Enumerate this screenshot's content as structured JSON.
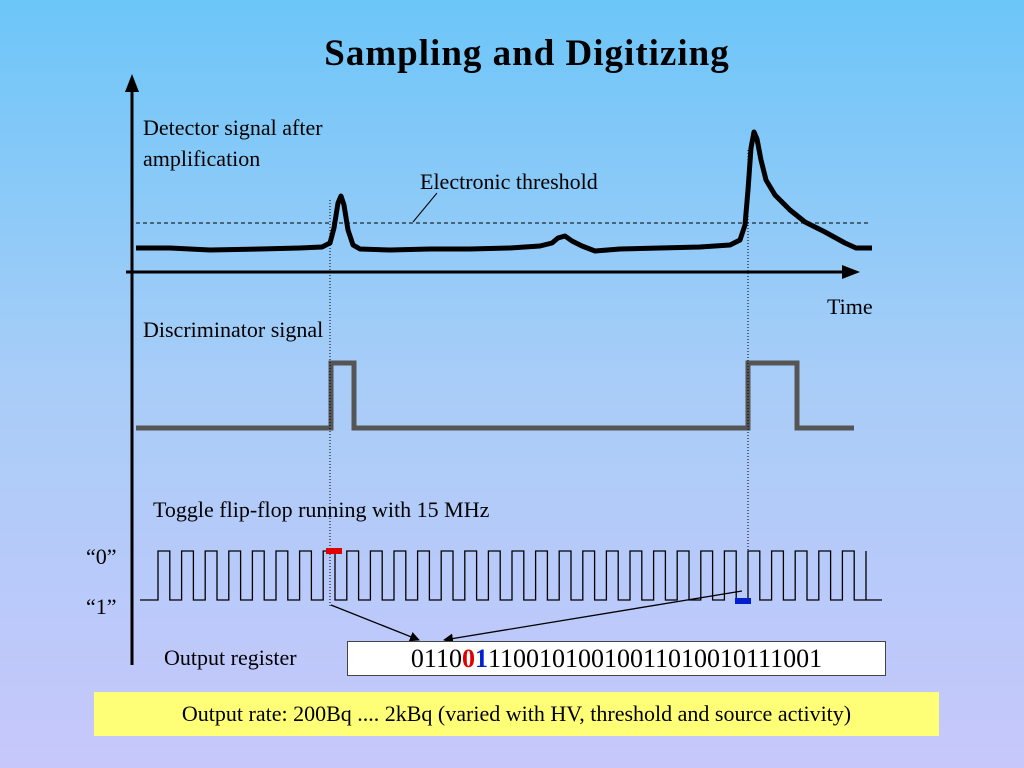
{
  "title": "Sampling and Digitizing",
  "labels": {
    "detector_line1": "Detector signal after",
    "detector_line2": "amplification",
    "threshold": "Electronic threshold",
    "time": "Time",
    "discriminator": "Discriminator signal",
    "flipflop": "Toggle flip-flop running with 15 MHz",
    "state_zero": "“0”",
    "state_one": "“1”",
    "output_register": "Output register"
  },
  "register": {
    "prefix": "0110",
    "bit_red": "0",
    "bit_blue": "1",
    "suffix": "11001010010011010010111001"
  },
  "note": "Output rate: 200Bq .... 2kBq (varied with HV, threshold and source activity)",
  "colors": {
    "signal": "#000000",
    "discriminator": "#555555",
    "sample_red": "#e00000",
    "sample_blue": "#0020d0",
    "note_bg": "#ffff77"
  }
}
